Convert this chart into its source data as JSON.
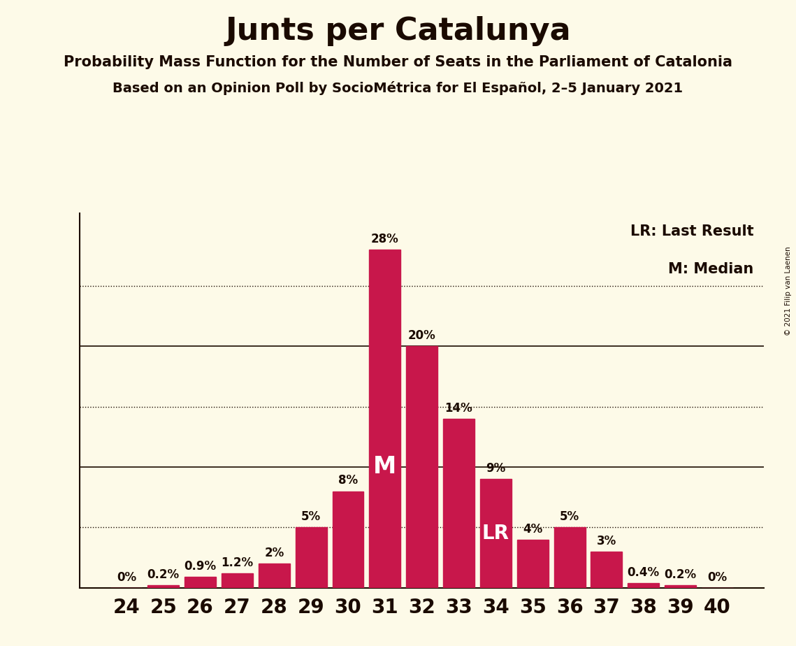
{
  "title": "Junts per Catalunya",
  "subtitle1": "Probability Mass Function for the Number of Seats in the Parliament of Catalonia",
  "subtitle2": "Based on an Opinion Poll by SocioMétrica for El Español, 2–5 January 2021",
  "copyright": "© 2021 Filip van Laenen",
  "seats": [
    24,
    25,
    26,
    27,
    28,
    29,
    30,
    31,
    32,
    33,
    34,
    35,
    36,
    37,
    38,
    39,
    40
  ],
  "probabilities": [
    0.0,
    0.2,
    0.9,
    1.2,
    2.0,
    5.0,
    8.0,
    28.0,
    20.0,
    14.0,
    9.0,
    4.0,
    5.0,
    3.0,
    0.4,
    0.2,
    0.0
  ],
  "bar_color": "#C8174B",
  "background_color": "#FDFAE8",
  "text_color": "#1a0a00",
  "median_seat": 31,
  "lr_seat": 34,
  "legend_lr": "LR: Last Result",
  "legend_m": "M: Median",
  "solid_lines": [
    10,
    20
  ],
  "dotted_lines": [
    5,
    15,
    25
  ],
  "ylim": [
    0,
    31
  ],
  "bar_labels": [
    "0%",
    "0.2%",
    "0.9%",
    "1.2%",
    "2%",
    "5%",
    "8%",
    "28%",
    "20%",
    "14%",
    "9%",
    "4%",
    "5%",
    "3%",
    "0.4%",
    "0.2%",
    "0%"
  ]
}
